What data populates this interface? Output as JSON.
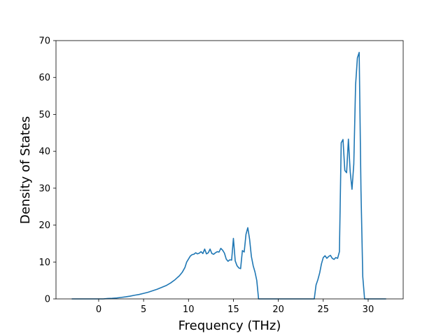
{
  "chart_data": {
    "type": "line",
    "title": "",
    "xlabel": "Frequency (THz)",
    "ylabel": "Density of States",
    "xlim": [
      -4.75,
      33.9
    ],
    "ylim": [
      0,
      70
    ],
    "xticks": [
      0,
      5,
      10,
      15,
      20,
      25,
      30
    ],
    "yticks": [
      0,
      10,
      20,
      30,
      40,
      50,
      60,
      70
    ],
    "grid": false,
    "legend": "none",
    "colors": {
      "line": "#1f77b4",
      "axes": "#000000",
      "background": "#ffffff"
    },
    "series": [
      {
        "x": [
          -3,
          -2,
          -1,
          0,
          0.5,
          1,
          1.5,
          2,
          2.5,
          3,
          3.5,
          4,
          4.5,
          5,
          5.5,
          6,
          6.5,
          7,
          7.5,
          8,
          8.5,
          9,
          9.3,
          9.6,
          9.8,
          10,
          10.2,
          10.4,
          10.6,
          10.8,
          11,
          11.2,
          11.4,
          11.6,
          11.8,
          12,
          12.2,
          12.4,
          12.6,
          12.8,
          13,
          13.2,
          13.4,
          13.6,
          13.8,
          14,
          14.2,
          14.4,
          14.6,
          14.8,
          15,
          15.2,
          15.4,
          15.6,
          15.8,
          16,
          16.2,
          16.4,
          16.6,
          16.8,
          17,
          17.2,
          17.4,
          17.6,
          17.8,
          18,
          19,
          20,
          21,
          22,
          23,
          24,
          24.2,
          24.4,
          24.6,
          24.8,
          25,
          25.2,
          25.4,
          25.6,
          25.8,
          26,
          26.2,
          26.4,
          26.6,
          26.8,
          27,
          27.2,
          27.4,
          27.6,
          27.8,
          28,
          28.2,
          28.4,
          28.6,
          28.8,
          29,
          29.2,
          29.4,
          29.6,
          30,
          31,
          32
        ],
        "y": [
          0,
          0,
          0,
          0,
          0,
          0.1,
          0.15,
          0.25,
          0.4,
          0.55,
          0.75,
          1.0,
          1.2,
          1.5,
          1.8,
          2.2,
          2.6,
          3.1,
          3.6,
          4.3,
          5.2,
          6.3,
          7.2,
          8.5,
          10,
          10.8,
          11.6,
          12,
          12.1,
          12.5,
          12.2,
          12.4,
          12.8,
          12.3,
          13.5,
          12.2,
          12.5,
          13.5,
          12.3,
          12.1,
          12.5,
          12.8,
          12.7,
          13.7,
          13.2,
          12.4,
          10.8,
          10.2,
          10.6,
          10.5,
          16.4,
          10.3,
          9.0,
          8.4,
          8.2,
          13.1,
          12.7,
          17.5,
          19.3,
          16.2,
          11.5,
          9.0,
          7.3,
          5.0,
          0,
          0,
          0,
          0,
          0,
          0,
          0,
          0,
          3.8,
          5.2,
          7.0,
          9.5,
          11.2,
          11.7,
          11.0,
          11.5,
          11.8,
          11.0,
          10.7,
          11.2,
          11.0,
          12.8,
          42.3,
          43.2,
          34.8,
          34.2,
          43.3,
          34.5,
          29.7,
          36.5,
          58.0,
          65.3,
          66.8,
          29.5,
          6.0,
          0,
          0,
          0,
          0
        ]
      }
    ]
  }
}
